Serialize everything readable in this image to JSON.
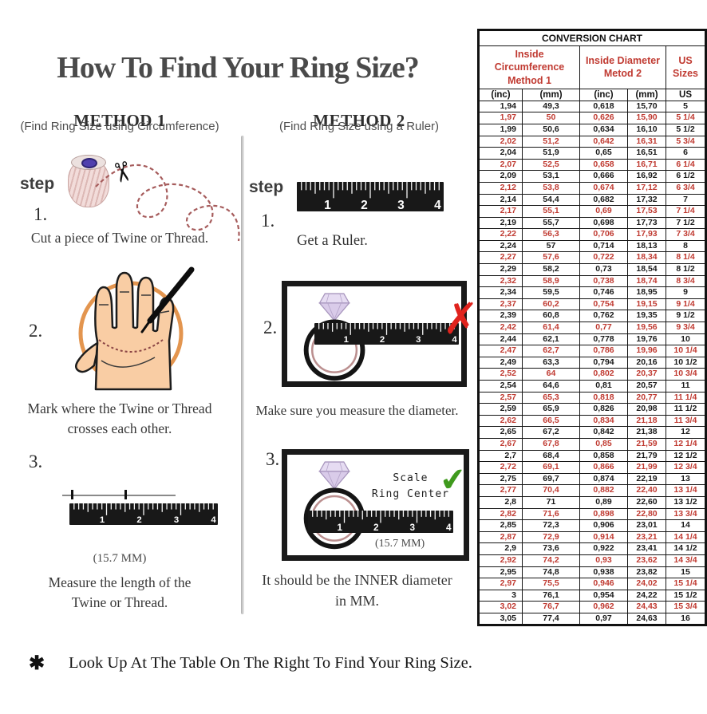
{
  "title": "How To Find Your Ring Size?",
  "methods": [
    {
      "name": "METHOD 1",
      "subtitle": "(Find Ring Size using Circumference)",
      "step_label": "step",
      "steps": [
        {
          "num": "1.",
          "caption": "Cut a piece of Twine or Thread."
        },
        {
          "num": "2.",
          "caption": "Mark where the Twine or Thread\ncrosses each other."
        },
        {
          "num": "3.",
          "measurement": "(15.7 MM)",
          "caption": "Measure the length of the\nTwine or Thread."
        }
      ]
    },
    {
      "name": "METHOD 2",
      "subtitle": "(Find Ring Size using a Ruler)",
      "step_label": "step",
      "steps": [
        {
          "num": "1.",
          "caption": "Get a Ruler."
        },
        {
          "num": "2.",
          "caption": "Make sure you measure the diameter."
        },
        {
          "num": "3.",
          "scale_label": "Scale\nRing Center",
          "measurement": "(15.7 MM)",
          "caption": "It should be the INNER diameter\nin MM."
        }
      ]
    }
  ],
  "ruler_numbers": [
    "1",
    "2",
    "3",
    "4"
  ],
  "icons": {
    "scissors": "✂",
    "x_mark": "✗",
    "check_mark": "✔",
    "asterisk": "✱"
  },
  "colors": {
    "table_red": "#c03a31",
    "x_red": "#e0231d",
    "check_green": "#3f9a1d",
    "circle_orange": "#e08a3c",
    "title_gray": "#4a4a4a"
  },
  "footnote": {
    "mark": "✱",
    "text": "Look Up At The Table On The Right To Find Your Ring Size."
  },
  "conversion_chart": {
    "title": "CONVERSION CHART",
    "col_groups": [
      {
        "label": "Inside Circumference\nMethod 1"
      },
      {
        "label": "Inside Diameter\nMetod 2"
      },
      {
        "label": "US Sizes"
      }
    ],
    "sub_headers": [
      "(inc)",
      "(mm)",
      "(inc)",
      "(mm)",
      "US"
    ],
    "rows": [
      [
        "1,94",
        "49,3",
        "0,618",
        "15,70",
        "5"
      ],
      [
        "1,97",
        "50",
        "0,626",
        "15,90",
        "5 1/4"
      ],
      [
        "1,99",
        "50,6",
        "0,634",
        "16,10",
        "5 1/2"
      ],
      [
        "2,02",
        "51,2",
        "0,642",
        "16,31",
        "5 3/4"
      ],
      [
        "2,04",
        "51,9",
        "0,65",
        "16,51",
        "6"
      ],
      [
        "2,07",
        "52,5",
        "0,658",
        "16,71",
        "6 1/4"
      ],
      [
        "2,09",
        "53,1",
        "0,666",
        "16,92",
        "6 1/2"
      ],
      [
        "2,12",
        "53,8",
        "0,674",
        "17,12",
        "6 3/4"
      ],
      [
        "2,14",
        "54,4",
        "0,682",
        "17,32",
        "7"
      ],
      [
        "2,17",
        "55,1",
        "0,69",
        "17,53",
        "7 1/4"
      ],
      [
        "2,19",
        "55,7",
        "0,698",
        "17,73",
        "7 1/2"
      ],
      [
        "2,22",
        "56,3",
        "0,706",
        "17,93",
        "7 3/4"
      ],
      [
        "2,24",
        "57",
        "0,714",
        "18,13",
        "8"
      ],
      [
        "2,27",
        "57,6",
        "0,722",
        "18,34",
        "8 1/4"
      ],
      [
        "2,29",
        "58,2",
        "0,73",
        "18,54",
        "8 1/2"
      ],
      [
        "2,32",
        "58,9",
        "0,738",
        "18,74",
        "8 3/4"
      ],
      [
        "2,34",
        "59,5",
        "0,746",
        "18,95",
        "9"
      ],
      [
        "2,37",
        "60,2",
        "0,754",
        "19,15",
        "9 1/4"
      ],
      [
        "2,39",
        "60,8",
        "0,762",
        "19,35",
        "9 1/2"
      ],
      [
        "2,42",
        "61,4",
        "0,77",
        "19,56",
        "9 3/4"
      ],
      [
        "2,44",
        "62,1",
        "0,778",
        "19,76",
        "10"
      ],
      [
        "2,47",
        "62,7",
        "0,786",
        "19,96",
        "10 1/4"
      ],
      [
        "2,49",
        "63,3",
        "0,794",
        "20,16",
        "10 1/2"
      ],
      [
        "2,52",
        "64",
        "0,802",
        "20,37",
        "10 3/4"
      ],
      [
        "2,54",
        "64,6",
        "0,81",
        "20,57",
        "11"
      ],
      [
        "2,57",
        "65,3",
        "0,818",
        "20,77",
        "11 1/4"
      ],
      [
        "2,59",
        "65,9",
        "0,826",
        "20,98",
        "11 1/2"
      ],
      [
        "2,62",
        "66,5",
        "0,834",
        "21,18",
        "11 3/4"
      ],
      [
        "2,65",
        "67,2",
        "0,842",
        "21,38",
        "12"
      ],
      [
        "2,67",
        "67,8",
        "0,85",
        "21,59",
        "12 1/4"
      ],
      [
        "2,7",
        "68,4",
        "0,858",
        "21,79",
        "12 1/2"
      ],
      [
        "2,72",
        "69,1",
        "0,866",
        "21,99",
        "12 3/4"
      ],
      [
        "2,75",
        "69,7",
        "0,874",
        "22,19",
        "13"
      ],
      [
        "2,77",
        "70,4",
        "0,882",
        "22,40",
        "13 1/4"
      ],
      [
        "2,8",
        "71",
        "0,89",
        "22,60",
        "13 1/2"
      ],
      [
        "2,82",
        "71,6",
        "0,898",
        "22,80",
        "13 3/4"
      ],
      [
        "2,85",
        "72,3",
        "0,906",
        "23,01",
        "14"
      ],
      [
        "2,87",
        "72,9",
        "0,914",
        "23,21",
        "14 1/4"
      ],
      [
        "2,9",
        "73,6",
        "0,922",
        "23,41",
        "14 1/2"
      ],
      [
        "2,92",
        "74,2",
        "0,93",
        "23,62",
        "14 3/4"
      ],
      [
        "2,95",
        "74,8",
        "0,938",
        "23,82",
        "15"
      ],
      [
        "2,97",
        "75,5",
        "0,946",
        "24,02",
        "15 1/4"
      ],
      [
        "3",
        "76,1",
        "0,954",
        "24,22",
        "15 1/2"
      ],
      [
        "3,02",
        "76,7",
        "0,962",
        "24,43",
        "15 3/4"
      ],
      [
        "3,05",
        "77,4",
        "0,97",
        "24,63",
        "16"
      ]
    ]
  }
}
